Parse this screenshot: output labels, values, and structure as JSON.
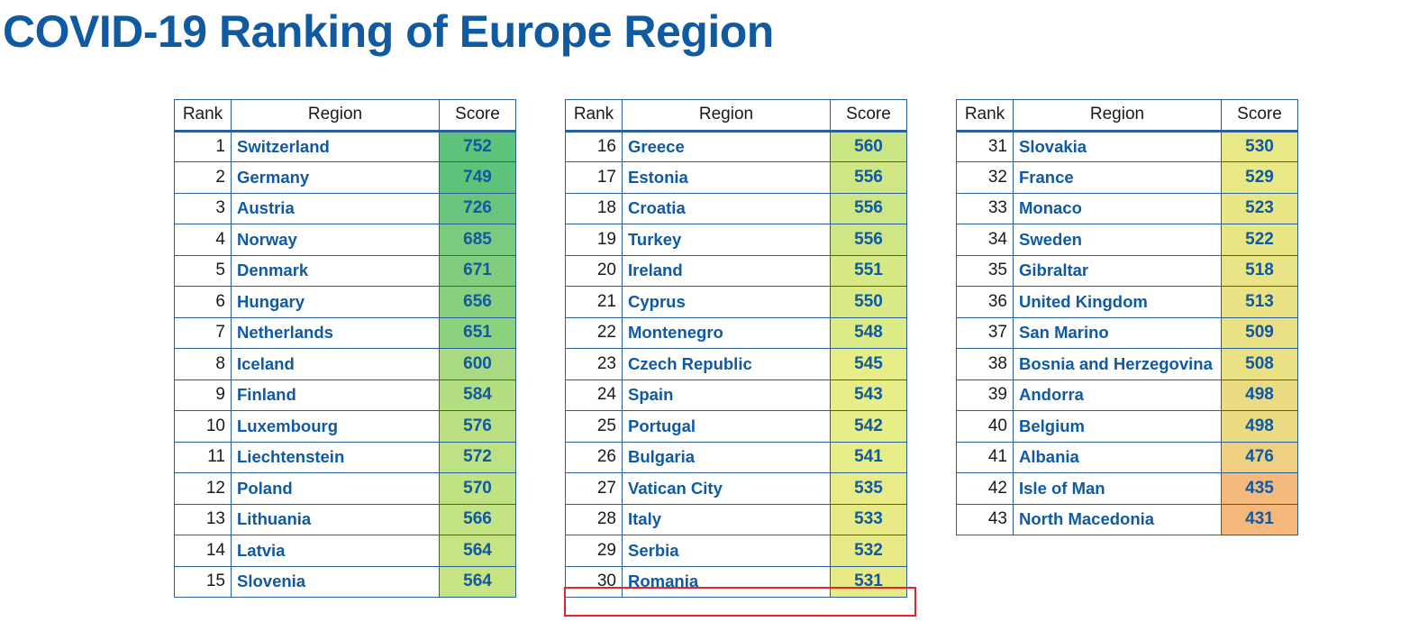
{
  "title": "COVID-19 Ranking of Europe Region",
  "headers": {
    "rank": "Rank",
    "region": "Region",
    "score": "Score"
  },
  "colors": {
    "title": "#0f5aa0",
    "region_text": "#1059a3",
    "border": "#2a5f9a",
    "highlight": "#e0262a",
    "score_high": "#5dc27a",
    "score_mid": "#e7ee87",
    "score_low": "#f4b87a"
  },
  "tables": [
    {
      "rows": [
        {
          "rank": "1",
          "region": "Switzerland",
          "score": "752"
        },
        {
          "rank": "2",
          "region": "Germany",
          "score": "749"
        },
        {
          "rank": "3",
          "region": "Austria",
          "score": "726"
        },
        {
          "rank": "4",
          "region": "Norway",
          "score": "685"
        },
        {
          "rank": "5",
          "region": "Denmark",
          "score": "671"
        },
        {
          "rank": "6",
          "region": "Hungary",
          "score": "656"
        },
        {
          "rank": "7",
          "region": "Netherlands",
          "score": "651"
        },
        {
          "rank": "8",
          "region": "Iceland",
          "score": "600"
        },
        {
          "rank": "9",
          "region": "Finland",
          "score": "584"
        },
        {
          "rank": "10",
          "region": "Luxembourg",
          "score": "576"
        },
        {
          "rank": "11",
          "region": "Liechtenstein",
          "score": "572"
        },
        {
          "rank": "12",
          "region": "Poland",
          "score": "570"
        },
        {
          "rank": "13",
          "region": "Lithuania",
          "score": "566"
        },
        {
          "rank": "14",
          "region": "Latvia",
          "score": "564"
        },
        {
          "rank": "15",
          "region": "Slovenia",
          "score": "564"
        }
      ]
    },
    {
      "rows": [
        {
          "rank": "16",
          "region": "Greece",
          "score": "560"
        },
        {
          "rank": "17",
          "region": "Estonia",
          "score": "556"
        },
        {
          "rank": "18",
          "region": "Croatia",
          "score": "556"
        },
        {
          "rank": "19",
          "region": "Turkey",
          "score": "556"
        },
        {
          "rank": "20",
          "region": "Ireland",
          "score": "551"
        },
        {
          "rank": "21",
          "region": "Cyprus",
          "score": "550"
        },
        {
          "rank": "22",
          "region": "Montenegro",
          "score": "548"
        },
        {
          "rank": "23",
          "region": "Czech Republic",
          "score": "545"
        },
        {
          "rank": "24",
          "region": "Spain",
          "score": "543"
        },
        {
          "rank": "25",
          "region": "Portugal",
          "score": "542"
        },
        {
          "rank": "26",
          "region": "Bulgaria",
          "score": "541"
        },
        {
          "rank": "27",
          "region": "Vatican City",
          "score": "535"
        },
        {
          "rank": "28",
          "region": "Italy",
          "score": "533"
        },
        {
          "rank": "29",
          "region": "Serbia",
          "score": "532"
        },
        {
          "rank": "30",
          "region": "Romania",
          "score": "531"
        }
      ]
    },
    {
      "rows": [
        {
          "rank": "31",
          "region": "Slovakia",
          "score": "530"
        },
        {
          "rank": "32",
          "region": "France",
          "score": "529"
        },
        {
          "rank": "33",
          "region": "Monaco",
          "score": "523"
        },
        {
          "rank": "34",
          "region": "Sweden",
          "score": "522"
        },
        {
          "rank": "35",
          "region": "Gibraltar",
          "score": "518"
        },
        {
          "rank": "36",
          "region": "United Kingdom",
          "score": "513"
        },
        {
          "rank": "37",
          "region": "San Marino",
          "score": "509"
        },
        {
          "rank": "38",
          "region": "Bosnia and Herzegovina",
          "score": "508"
        },
        {
          "rank": "39",
          "region": "Andorra",
          "score": "498"
        },
        {
          "rank": "40",
          "region": "Belgium",
          "score": "498"
        },
        {
          "rank": "41",
          "region": "Albania",
          "score": "476"
        },
        {
          "rank": "42",
          "region": "Isle of Man",
          "score": "435"
        },
        {
          "rank": "43",
          "region": "North Macedonia",
          "score": "431"
        }
      ]
    }
  ],
  "highlighted_region": "Romania"
}
